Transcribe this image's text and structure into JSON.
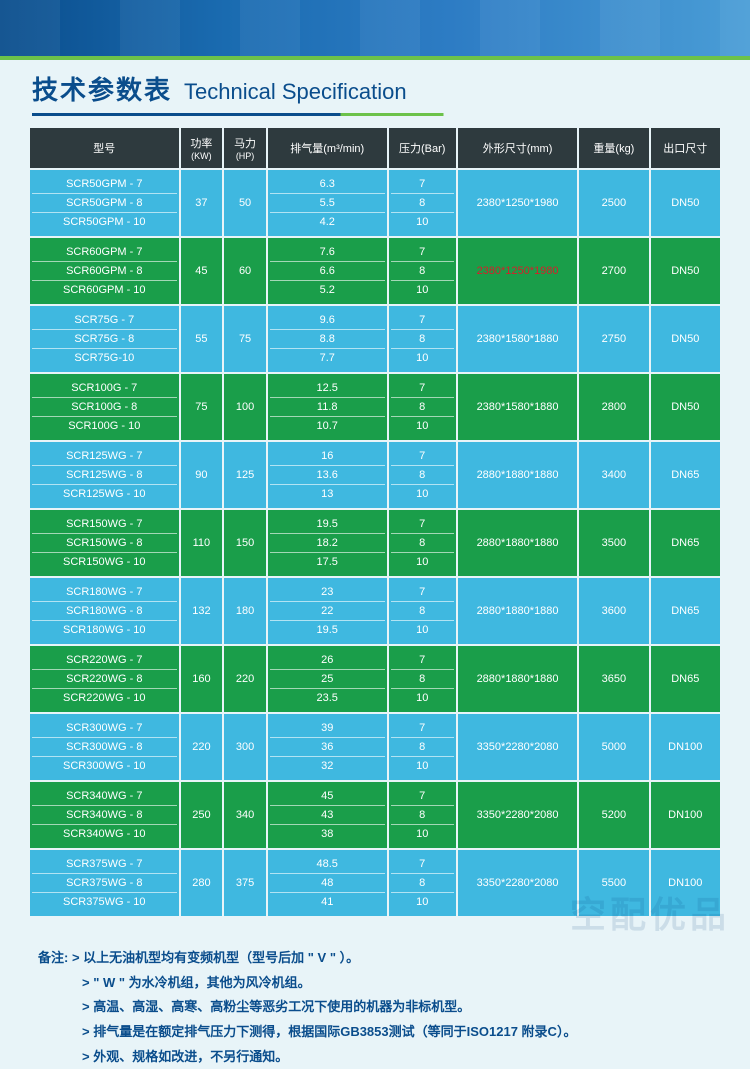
{
  "title": {
    "cn": "技术参数表",
    "en": "Technical Specification"
  },
  "headers": {
    "model": "型号",
    "kw_label": "功率",
    "kw_sub": "(KW)",
    "hp_label": "马力",
    "hp_sub": "(HP)",
    "air": "排气量(m³/min)",
    "bar": "压力(Bar)",
    "dim": "外形尺寸(mm)",
    "wt": "重量(kg)",
    "out": "出口尺寸"
  },
  "colors": {
    "blue": "#3fb8e0",
    "green": "#1a9e4a",
    "header": "#2e3a3e"
  },
  "groups": [
    {
      "cls": "blue",
      "models": [
        "SCR50GPM - 7",
        "SCR50GPM - 8",
        "SCR50GPM - 10"
      ],
      "kw": "37",
      "hp": "50",
      "air": [
        "6.3",
        "5.5",
        "4.2"
      ],
      "bar": [
        "7",
        "8",
        "10"
      ],
      "dim": "2380*1250*1980",
      "wt": "2500",
      "out": "DN50"
    },
    {
      "cls": "green",
      "models": [
        "SCR60GPM - 7",
        "SCR60GPM - 8",
        "SCR60GPM - 10"
      ],
      "kw": "45",
      "hp": "60",
      "air": [
        "7.6",
        "6.6",
        "5.2"
      ],
      "bar": [
        "7",
        "8",
        "10"
      ],
      "dim": "2380*1250*1980",
      "dim_red": true,
      "wt": "2700",
      "out": "DN50"
    },
    {
      "cls": "blue",
      "models": [
        "SCR75G - 7",
        "SCR75G - 8",
        "SCR75G-10"
      ],
      "kw": "55",
      "hp": "75",
      "air": [
        "9.6",
        "8.8",
        "7.7"
      ],
      "bar": [
        "7",
        "8",
        "10"
      ],
      "dim": "2380*1580*1880",
      "wt": "2750",
      "out": "DN50"
    },
    {
      "cls": "green",
      "models": [
        "SCR100G - 7",
        "SCR100G - 8",
        "SCR100G - 10"
      ],
      "kw": "75",
      "hp": "100",
      "air": [
        "12.5",
        "11.8",
        "10.7"
      ],
      "bar": [
        "7",
        "8",
        "10"
      ],
      "dim": "2380*1580*1880",
      "wt": "2800",
      "out": "DN50"
    },
    {
      "cls": "blue",
      "models": [
        "SCR125WG - 7",
        "SCR125WG - 8",
        "SCR125WG - 10"
      ],
      "kw": "90",
      "hp": "125",
      "air": [
        "16",
        "13.6",
        "13"
      ],
      "bar": [
        "7",
        "8",
        "10"
      ],
      "dim": "2880*1880*1880",
      "wt": "3400",
      "out": "DN65"
    },
    {
      "cls": "green",
      "models": [
        "SCR150WG - 7",
        "SCR150WG - 8",
        "SCR150WG - 10"
      ],
      "kw": "110",
      "hp": "150",
      "air": [
        "19.5",
        "18.2",
        "17.5"
      ],
      "bar": [
        "7",
        "8",
        "10"
      ],
      "dim": "2880*1880*1880",
      "wt": "3500",
      "out": "DN65"
    },
    {
      "cls": "blue",
      "models": [
        "SCR180WG - 7",
        "SCR180WG - 8",
        "SCR180WG - 10"
      ],
      "kw": "132",
      "hp": "180",
      "air": [
        "23",
        "22",
        "19.5"
      ],
      "bar": [
        "7",
        "8",
        "10"
      ],
      "dim": "2880*1880*1880",
      "wt": "3600",
      "out": "DN65"
    },
    {
      "cls": "green",
      "models": [
        "SCR220WG - 7",
        "SCR220WG - 8",
        "SCR220WG - 10"
      ],
      "kw": "160",
      "hp": "220",
      "air": [
        "26",
        "25",
        "23.5"
      ],
      "bar": [
        "7",
        "8",
        "10"
      ],
      "dim": "2880*1880*1880",
      "wt": "3650",
      "out": "DN65"
    },
    {
      "cls": "blue",
      "models": [
        "SCR300WG - 7",
        "SCR300WG - 8",
        "SCR300WG - 10"
      ],
      "kw": "220",
      "hp": "300",
      "air": [
        "39",
        "36",
        "32"
      ],
      "bar": [
        "7",
        "8",
        "10"
      ],
      "dim": "3350*2280*2080",
      "wt": "5000",
      "out": "DN100"
    },
    {
      "cls": "green",
      "models": [
        "SCR340WG - 7",
        "SCR340WG - 8",
        "SCR340WG - 10"
      ],
      "kw": "250",
      "hp": "340",
      "air": [
        "45",
        "43",
        "38"
      ],
      "bar": [
        "7",
        "8",
        "10"
      ],
      "dim": "3350*2280*2080",
      "wt": "5200",
      "out": "DN100"
    },
    {
      "cls": "blue",
      "models": [
        "SCR375WG - 7",
        "SCR375WG - 8",
        "SCR375WG - 10"
      ],
      "kw": "280",
      "hp": "375",
      "air": [
        "48.5",
        "48",
        "41"
      ],
      "bar": [
        "7",
        "8",
        "10"
      ],
      "dim": "3350*2280*2080",
      "wt": "5500",
      "out": "DN100"
    }
  ],
  "notes": {
    "label": "备注: ",
    "lines": [
      "> 以上无油机型均有变频机型（型号后加 \" V \" ）。",
      "> \" W \" 为水冷机组，其他为风冷机组。",
      "> 高温、高湿、高寒、高粉尘等恶劣工况下使用的机器为非标机型。",
      "> 排气量是在额定排气压力下测得，根据国际GB3853测试（等同于ISO1217 附录C）。",
      "> 外观、规格如改进，不另行通知。"
    ]
  },
  "watermark": "空配优品"
}
